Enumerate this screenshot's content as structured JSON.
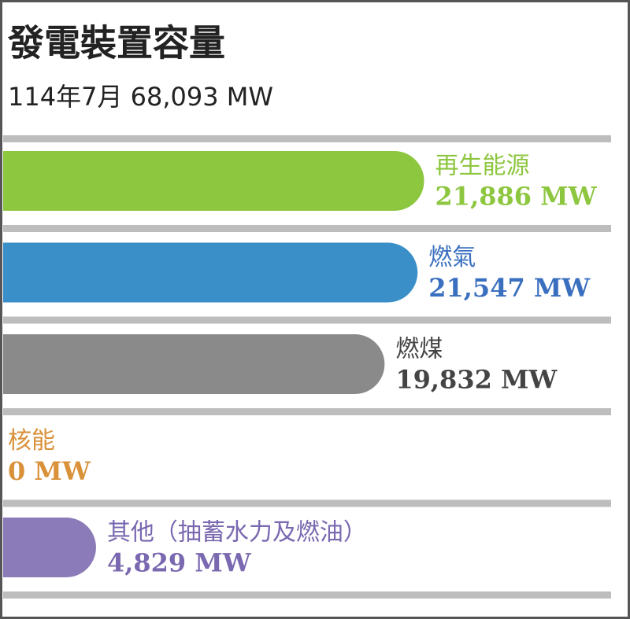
{
  "chart_data": {
    "type": "bar",
    "orientation": "horizontal",
    "title": "發電裝置容量",
    "subtitle": "114年7月 68,093 MW",
    "categories": [
      "再生能源",
      "燃氣",
      "燃煤",
      "核能",
      "其他（抽蓄水力及燃油）"
    ],
    "values": [
      21886,
      21547,
      19832,
      0,
      4829
    ],
    "value_labels": [
      "21,886 MW",
      "21,547 MW",
      "19,832 MW",
      "0 MW",
      "4,829 MW"
    ],
    "colors": [
      "#8dc63f",
      "#3a8fc9",
      "#8a8a8a",
      "#e0a040",
      "#8b7bb8"
    ],
    "label_colors": [
      "#8dc63f",
      "#3a6fbf",
      "#444444",
      "#d9913a",
      "#7a68b0"
    ]
  }
}
